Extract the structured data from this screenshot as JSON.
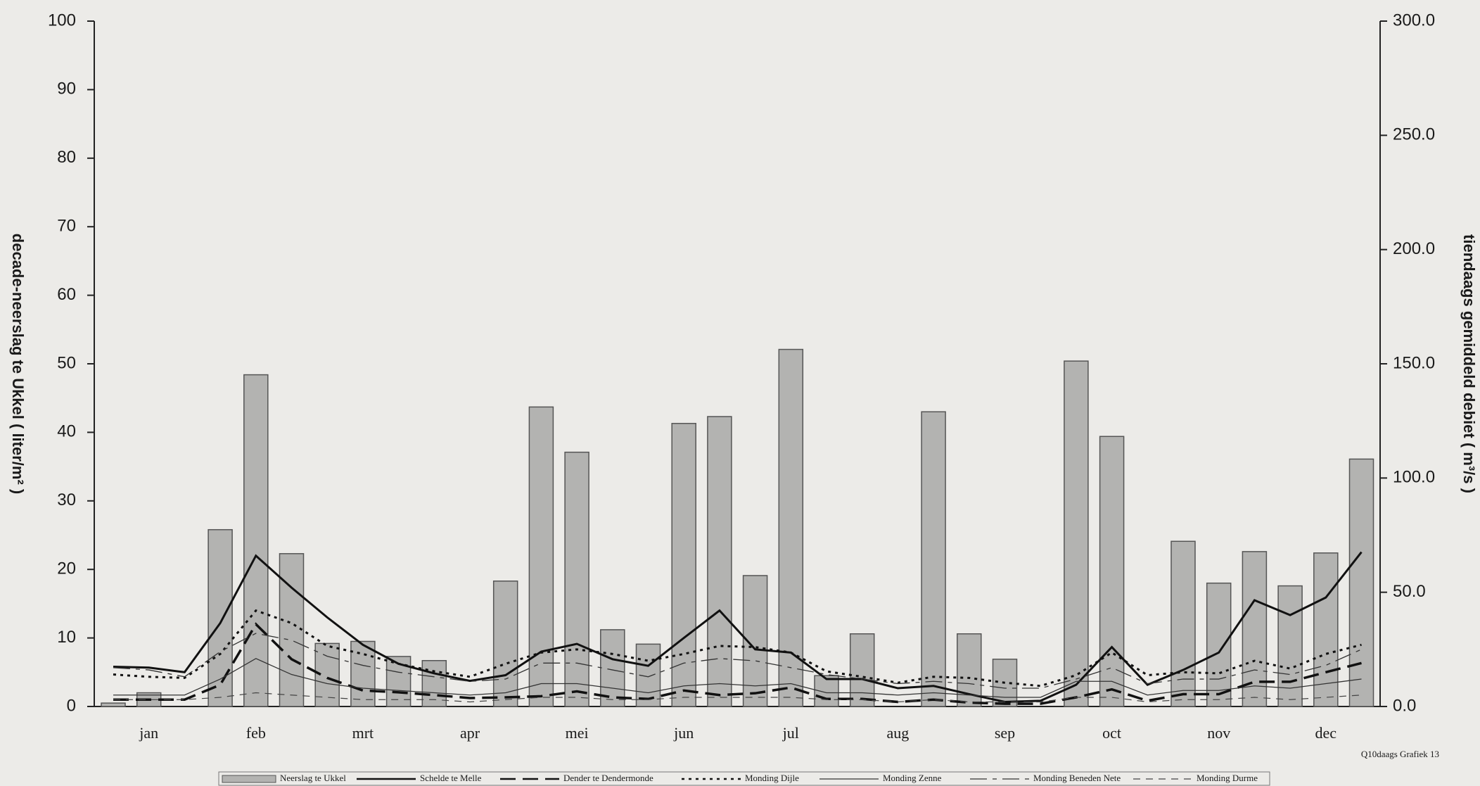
{
  "chart_data": {
    "type": "bar",
    "categories": [
      null,
      "jan",
      null,
      null,
      "feb",
      null,
      null,
      "mrt",
      null,
      null,
      "apr",
      null,
      null,
      "mei",
      null,
      null,
      "jun",
      null,
      null,
      "jul",
      null,
      null,
      "aug",
      null,
      null,
      "sep",
      null,
      null,
      "oct",
      null,
      null,
      "nov",
      null,
      null,
      "dec",
      null
    ],
    "y_label": "decade-neerslag te Ukkel ( liter/m² )",
    "y2_label": "tiendaags gemiddeld debiet ( m³/s )",
    "ylim": [
      0,
      100
    ],
    "yticks": [
      0,
      10,
      20,
      30,
      40,
      50,
      60,
      70,
      80,
      90,
      100
    ],
    "y2lim": [
      0,
      300
    ],
    "y2ticks": [
      {
        "value": 0,
        "label": "0.0"
      },
      {
        "value": 50,
        "label": "50.0"
      },
      {
        "value": 100,
        "label": "100.0"
      },
      {
        "value": 150,
        "label": "150.0"
      },
      {
        "value": 200,
        "label": "200.0"
      },
      {
        "value": 250,
        "label": "250.0"
      },
      {
        "value": 300,
        "label": "300.0"
      }
    ],
    "note": "Q10daags Grafiek 13",
    "series": [
      {
        "name": "Neerslag te Ukkel",
        "type": "bar",
        "color": "#b3b3b1",
        "values": [
          0.5,
          2,
          0,
          25.8,
          48.4,
          22.3,
          9.2,
          9.5,
          7.3,
          6.7,
          0,
          18.3,
          43.7,
          37.1,
          11.2,
          9.1,
          41.3,
          42.3,
          19.1,
          52.1,
          4.5,
          10.6,
          0,
          43.0,
          10.6,
          6.9,
          0,
          50.4,
          39.4,
          0,
          24.1,
          18.0,
          22.6,
          17.6,
          22.4,
          36.1
        ]
      },
      {
        "name": "Schelde te Melle",
        "type": "line",
        "axis": "y2",
        "color": "#111111",
        "width": 3,
        "dash": "",
        "values": [
          17.4,
          17,
          15,
          36.5,
          66,
          52,
          39,
          27,
          18.7,
          14.5,
          11.2,
          13.7,
          24,
          27.4,
          20.7,
          17.8,
          30,
          42,
          25,
          23.6,
          12,
          12,
          8,
          9,
          5.4,
          2,
          2.5,
          9.5,
          26,
          9.5,
          16,
          23.6,
          46.5,
          40,
          47.7,
          67.6
        ]
      },
      {
        "name": "Dender te Dendermonde",
        "type": "line",
        "axis": "y2",
        "color": "#111111",
        "width": 3.5,
        "dash": "22 10",
        "values": [
          3,
          3,
          3,
          9.5,
          36,
          20.7,
          12.5,
          7,
          6.2,
          5,
          3.7,
          4,
          4.5,
          6.6,
          4,
          3.3,
          7,
          5,
          5.8,
          8.3,
          3.3,
          3.3,
          2,
          3,
          1.7,
          1.2,
          1.2,
          4,
          7.5,
          2.5,
          5.4,
          5.4,
          10.8,
          10.8,
          15,
          19
        ]
      },
      {
        "name": "Monding Dijle",
        "type": "line",
        "axis": "y2",
        "color": "#111111",
        "width": 3,
        "dash": "4 6",
        "values": [
          14,
          13,
          12.5,
          23,
          42,
          36.5,
          26.5,
          23,
          18.7,
          15.4,
          13,
          18.7,
          23.6,
          25,
          23,
          20,
          23,
          26.5,
          26,
          23.6,
          15.4,
          13,
          10.4,
          13,
          12.5,
          10.4,
          9,
          13.7,
          23.6,
          13.7,
          15,
          14.5,
          20,
          16.6,
          23,
          27
        ]
      },
      {
        "name": "Monding Zenne",
        "type": "line",
        "axis": "y2",
        "color": "#333333",
        "width": 1.3,
        "dash": "",
        "values": [
          5,
          5,
          5,
          12,
          21,
          14,
          10,
          8,
          7,
          6,
          5,
          6,
          10,
          10,
          8,
          6,
          9,
          10,
          9,
          10,
          6,
          6,
          5,
          6,
          5,
          4,
          4,
          11,
          11,
          5,
          7,
          7,
          9,
          8,
          10,
          12
        ]
      },
      {
        "name": "Monding Beneden Nete",
        "type": "line",
        "axis": "y2",
        "color": "#333333",
        "width": 1.3,
        "dash": "24 8 6 8",
        "values": [
          17,
          16,
          13,
          24,
          32,
          29,
          22,
          18,
          15,
          13,
          11,
          12,
          19,
          19,
          16,
          13,
          19,
          21,
          20,
          17,
          14,
          12,
          10,
          11,
          10,
          8,
          8,
          12,
          17,
          10,
          12,
          12,
          16,
          14,
          18,
          25
        ]
      },
      {
        "name": "Monding Durme",
        "type": "line",
        "axis": "y2",
        "color": "#444444",
        "width": 1.2,
        "dash": "10 8",
        "values": [
          3,
          3,
          3,
          4,
          6,
          5,
          4,
          3,
          3,
          3,
          2,
          3,
          4,
          4,
          3,
          3,
          4,
          4,
          4,
          4,
          3,
          3,
          2,
          3,
          2,
          2,
          2,
          4,
          4,
          2,
          3,
          3,
          4,
          3,
          4,
          5
        ]
      }
    ]
  }
}
